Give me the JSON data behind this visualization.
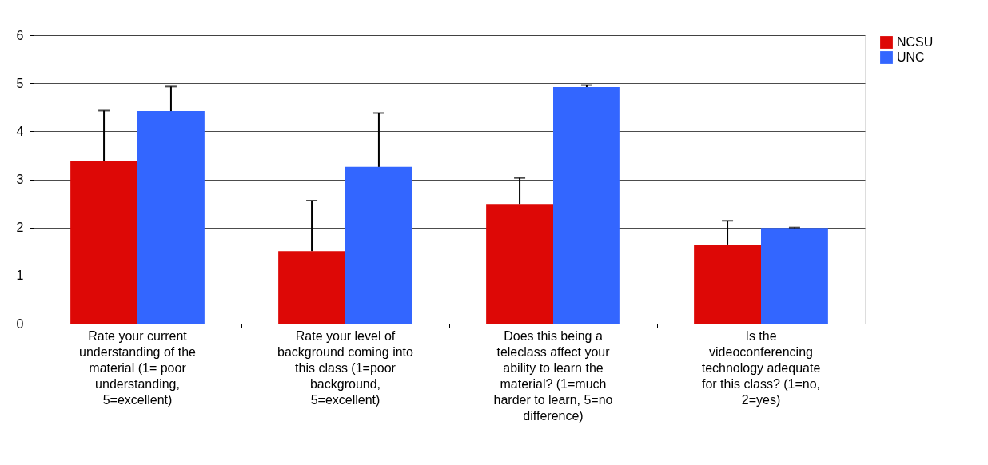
{
  "chart_data": {
    "type": "bar",
    "categories": [
      "Rate your current understanding of the material (1= poor understanding, 5=excellent)",
      "Rate your level of background coming into this class (1=poor background, 5=excellent)",
      "Does this being a teleclass affect your ability to learn the material? (1=much harder to learn, 5=no difference)",
      "Is the videoconferencing technology adequate for this class? (1=no, 2=yes)"
    ],
    "series": [
      {
        "name": "NCSU",
        "color": "#dd0806",
        "values": [
          3.38,
          1.51,
          2.49,
          1.63
        ],
        "errors": [
          [
            3.38,
            4.43
          ],
          [
            1.51,
            2.56
          ],
          [
            2.49,
            3.03
          ],
          [
            1.63,
            2.14
          ]
        ]
      },
      {
        "name": "UNC",
        "color": "#3366ff",
        "values": [
          4.42,
          3.26,
          4.92,
          1.99
        ],
        "errors": [
          [
            4.42,
            4.93
          ],
          [
            3.26,
            4.38
          ],
          [
            4.92,
            4.96
          ],
          [
            1.99,
            2.0
          ]
        ]
      }
    ],
    "ylim": [
      0,
      6
    ],
    "yticks": [
      0,
      1,
      2,
      3,
      4,
      5,
      6
    ],
    "grid": "y",
    "legend": "right"
  }
}
